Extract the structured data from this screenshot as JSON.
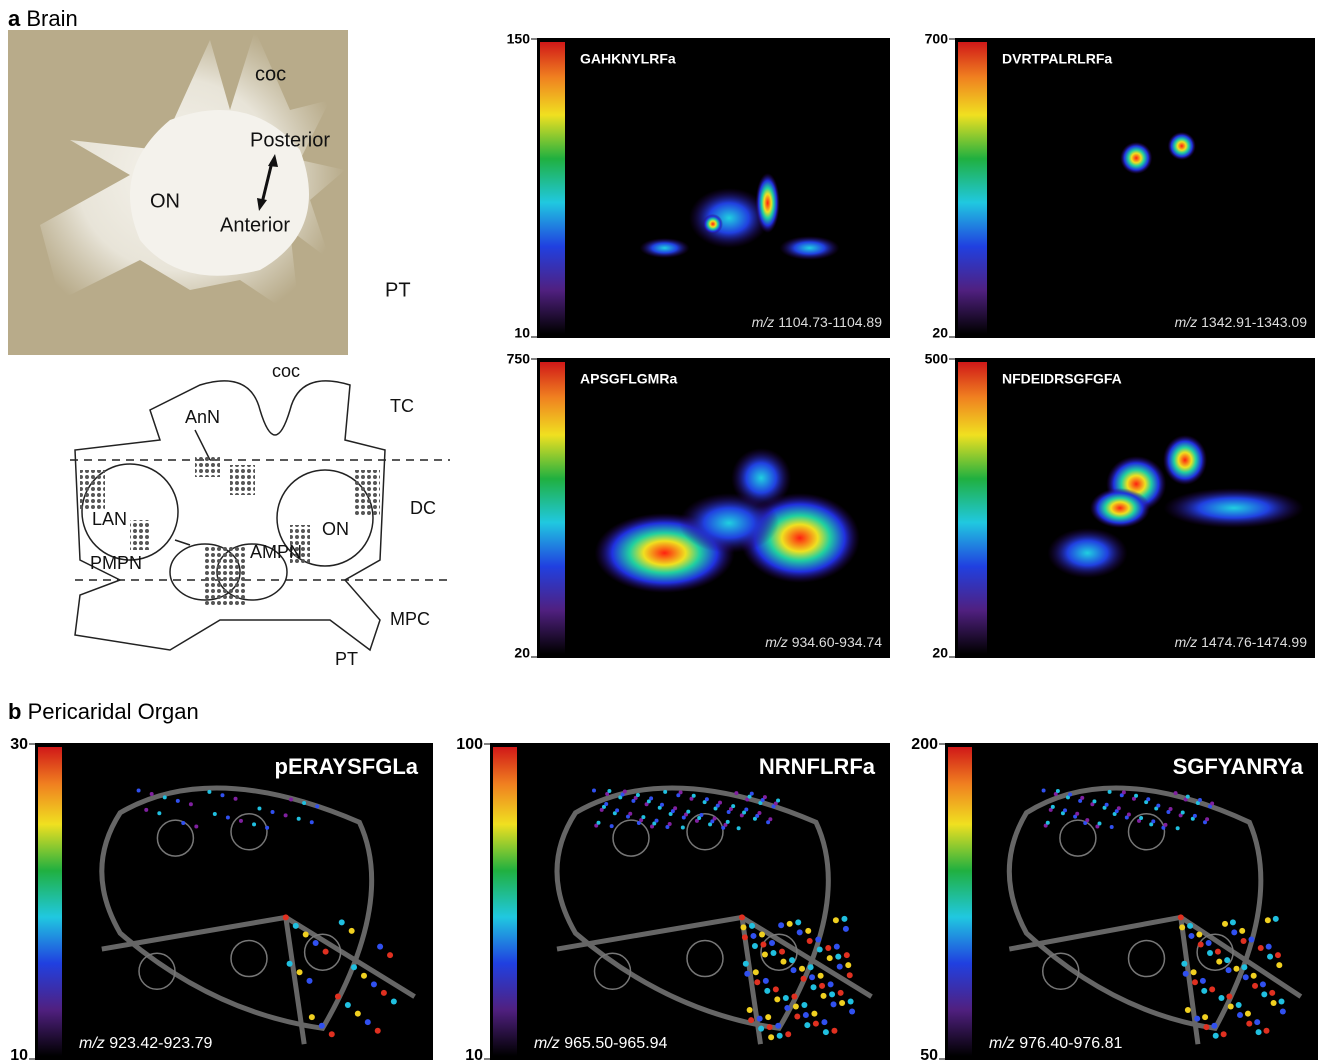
{
  "panel_a": {
    "letter": "a",
    "title": "Brain",
    "photo_labels": [
      "coc",
      "Posterior",
      "Anterior",
      "ON",
      "PT"
    ],
    "diagram_labels": [
      "coc",
      "TC",
      "AnN",
      "LAN",
      "DC",
      "ON",
      "PMPN",
      "AMPN",
      "MPC",
      "PT"
    ],
    "images": [
      {
        "peptide": "GAHKNYLRFa",
        "scale_max": 150,
        "scale_min": 10,
        "mz_unit": "m/z",
        "mz_range": "1104.73-1104.89"
      },
      {
        "peptide": "DVRTPALRLRFa",
        "scale_max": 700,
        "scale_min": 20,
        "mz_unit": "m/z",
        "mz_range": "1342.91-1343.09"
      },
      {
        "peptide": "APSGFLGMRa",
        "scale_max": 750,
        "scale_min": 20,
        "mz_unit": "m/z",
        "mz_range": "934.60-934.74"
      },
      {
        "peptide": "NFDEIDRSGFGFA",
        "scale_max": 500,
        "scale_min": 20,
        "mz_unit": "m/z",
        "mz_range": "1474.76-1474.99"
      }
    ]
  },
  "panel_b": {
    "letter": "b",
    "title": "Pericaridal Organ",
    "images": [
      {
        "peptide": "pERAYSFGLa",
        "scale_max": 30,
        "scale_min": 10,
        "mz_unit": "m/z",
        "mz_range": "923.42-923.79"
      },
      {
        "peptide": "NRNFLRFa",
        "scale_max": 100,
        "scale_min": 10,
        "mz_unit": "m/z",
        "mz_range": "965.50-965.94"
      },
      {
        "peptide": "SGFYANRYa",
        "scale_max": 200,
        "scale_min": 50,
        "mz_unit": "m/z",
        "mz_range": "976.40-976.81"
      }
    ]
  }
}
